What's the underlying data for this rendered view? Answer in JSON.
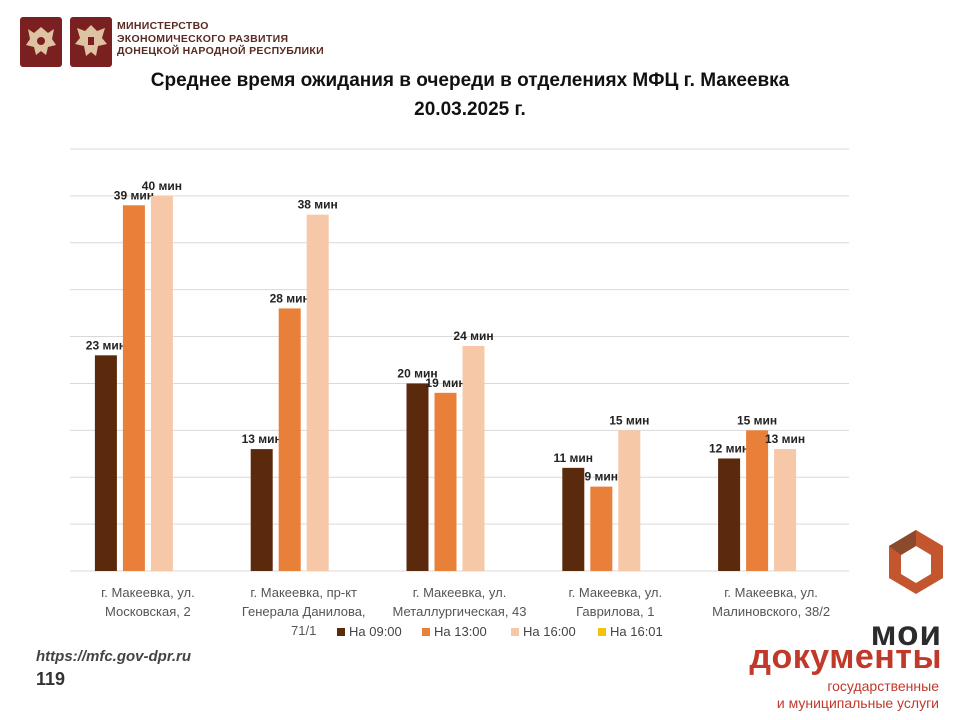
{
  "header": {
    "ministry_lines": [
      "МИНИСТЕРСТВО",
      "ЭКОНОМИЧЕСКОГО РАЗВИТИЯ",
      "ДОНЕЦКОЙ НАРОДНОЙ РЕСПУБЛИКИ"
    ],
    "emblem_icons": [
      "russian-coat-of-arms-icon",
      "dpr-coat-of-arms-icon"
    ]
  },
  "title_line1": "Среднее время ожидания в очереди в отделениях МФЦ г. Макеевка",
  "title_line2": "20.03.2025 г.",
  "chart_data": {
    "type": "bar",
    "title": "Среднее время ожидания в очереди в отделениях МФЦ г. Макеевка 20.03.2025 г.",
    "categories": [
      [
        "г. Макеевка, ул.",
        "Московская, 2"
      ],
      [
        "г. Макеевка, пр-кт",
        "Генерала Данилова,",
        "71/1"
      ],
      [
        "г. Макеевка, ул.",
        "Металлургическая, 43"
      ],
      [
        "г. Макеевка, ул.",
        "Гаврилова, 1"
      ],
      [
        "г. Макеевка, ул.",
        "Малиновского, 38/2"
      ]
    ],
    "series": [
      {
        "name": "На 09:00",
        "color": "#5b2a0d",
        "values": [
          23,
          13,
          20,
          11,
          12
        ],
        "labels": [
          "23 мин",
          "13 мин",
          "20 мин",
          "11 мин",
          "12 мин"
        ]
      },
      {
        "name": "На 13:00",
        "color": "#e8803a",
        "values": [
          39,
          28,
          19,
          9,
          15
        ],
        "labels": [
          "39 мин",
          "28 мин",
          "19 мин",
          "9 мин",
          "15 мин"
        ]
      },
      {
        "name": "На 16:00",
        "color": "#f6c8a8",
        "values": [
          40,
          38,
          24,
          15,
          13
        ],
        "labels": [
          "40 мин",
          "38 мин",
          "24 мин",
          "15 мин",
          "13 мин"
        ]
      },
      {
        "name": "На 16:01",
        "color": "#f2c20f",
        "values": [
          null,
          null,
          null,
          null,
          null
        ],
        "labels": []
      }
    ],
    "ylim": [
      0,
      45
    ],
    "grid": true,
    "legend_position": "bottom"
  },
  "footer": {
    "url": "https://mfc.gov-dpr.ru",
    "page_number": "119"
  },
  "brand": {
    "name_line1": "мои",
    "name_line2": "документы",
    "subtitle_line1": "государственные",
    "subtitle_line2": "и муниципальные услуги",
    "logo_icon": "moi-dokumenty-logo-icon"
  }
}
